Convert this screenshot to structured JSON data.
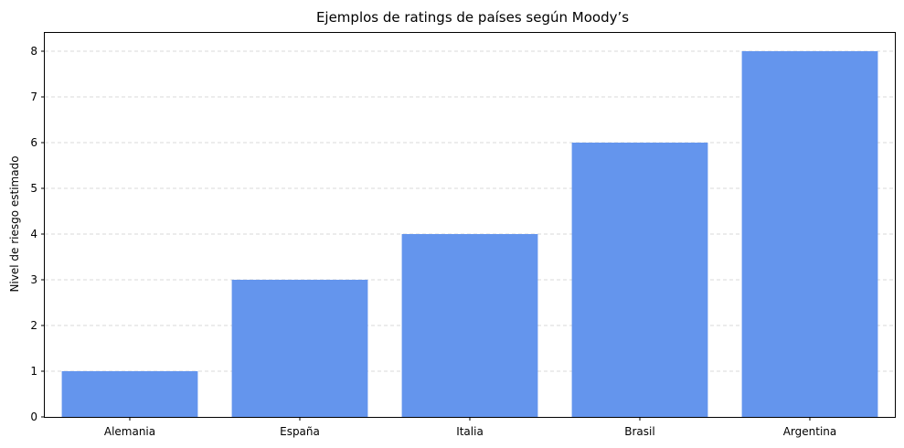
{
  "chart_data": {
    "type": "bar",
    "title": "Ejemplos de ratings de países según Moody’s",
    "xlabel": "",
    "ylabel": "Nivel de riesgo estimado",
    "categories": [
      "Alemania",
      "España",
      "Italia",
      "Brasil",
      "Argentina"
    ],
    "values": [
      1,
      3,
      4,
      6,
      8
    ],
    "ylim": [
      0,
      8.4
    ],
    "yticks": [
      "0",
      "1",
      "2",
      "3",
      "4",
      "5",
      "6",
      "7",
      "8"
    ],
    "grid": "y-dashed",
    "bar_color": "#6495ED"
  }
}
